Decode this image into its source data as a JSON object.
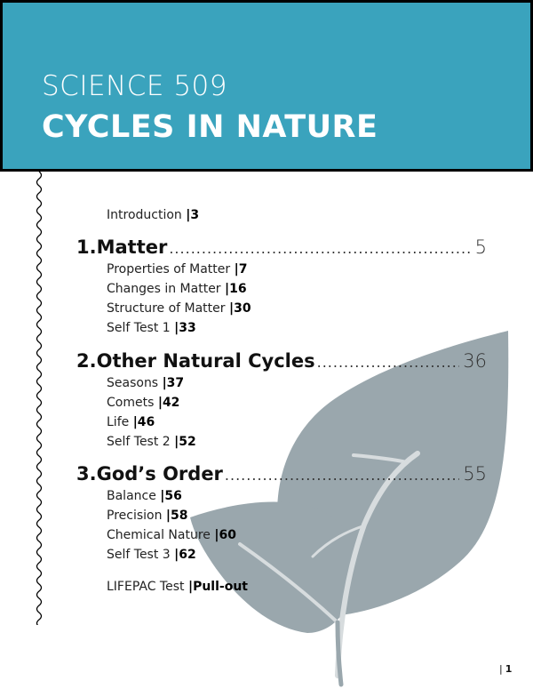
{
  "header": {
    "course": "SCIENCE 509",
    "title": "CYCLES IN NATURE"
  },
  "intro": {
    "label": "Introduction",
    "page": "|3"
  },
  "sections": [
    {
      "number": "1.",
      "title": "Matter",
      "page": "5",
      "items": [
        {
          "label": "Properties of Matter",
          "page": "|7"
        },
        {
          "label": "Changes in Matter",
          "page": "|16"
        },
        {
          "label": "Structure of Matter",
          "page": "|30"
        },
        {
          "label": "Self Test 1",
          "page": "|33"
        }
      ]
    },
    {
      "number": "2.",
      "title": "Other Natural Cycles",
      "page": "36",
      "items": [
        {
          "label": "Seasons",
          "page": "|37"
        },
        {
          "label": "Comets",
          "page": "|42"
        },
        {
          "label": "Life",
          "page": "|46"
        },
        {
          "label": "Self Test 2",
          "page": "|52"
        }
      ]
    },
    {
      "number": "3.",
      "title": "God’s Order",
      "page": "55",
      "items": [
        {
          "label": "Balance",
          "page": "|56"
        },
        {
          "label": "Precision",
          "page": "|58"
        },
        {
          "label": "Chemical Nature",
          "page": "|60"
        },
        {
          "label": "Self Test 3",
          "page": "|62"
        }
      ]
    }
  ],
  "final_test": {
    "label": "LIFEPAC Test",
    "page": "|Pull-out"
  },
  "footer": {
    "bar": "|",
    "page_number": "1"
  },
  "colors": {
    "banner": "#3aa3bd",
    "leaf": "#9aa7ad",
    "border": "#000000"
  },
  "icons": {
    "wave": "wavy-line",
    "leaf": "leaf-illustration"
  }
}
